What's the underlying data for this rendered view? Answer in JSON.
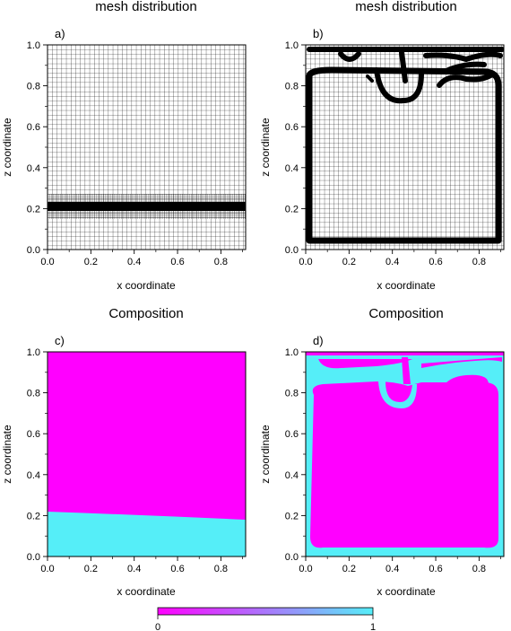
{
  "chart_data": [
    {
      "panel": "a)",
      "type": "mesh",
      "title": "mesh distribution",
      "xlabel": "x coordinate",
      "ylabel": "z coordinate",
      "xlim": [
        0,
        0.9142
      ],
      "ylim": [
        0,
        1
      ],
      "xticks": [
        "0.0",
        "0.2",
        "0.4",
        "0.6",
        "0.8"
      ],
      "yticks": [
        "0.0",
        "0.2",
        "0.4",
        "0.6",
        "0.8",
        "1.0"
      ],
      "refinement": {
        "shape": "band",
        "z_range": [
          0.15,
          0.25
        ]
      }
    },
    {
      "panel": "b)",
      "type": "mesh",
      "title": "mesh distribution",
      "xlabel": "x coordinate",
      "ylabel": "z coordinate",
      "xlim": [
        0,
        0.9142
      ],
      "ylim": [
        0,
        1
      ],
      "xticks": [
        "0.0",
        "0.2",
        "0.4",
        "0.6",
        "0.8"
      ],
      "yticks": [
        "0.0",
        "0.2",
        "0.4",
        "0.6",
        "0.8",
        "1.0"
      ],
      "refinement": {
        "shape": "interface",
        "follows": "composition boundary"
      }
    },
    {
      "panel": "c)",
      "type": "field",
      "title": "Composition",
      "xlabel": "x coordinate",
      "ylabel": "z coordinate",
      "xlim": [
        0,
        0.9142
      ],
      "ylim": [
        0,
        1
      ],
      "xticks": [
        "0.0",
        "0.2",
        "0.4",
        "0.6",
        "0.8"
      ],
      "yticks": [
        "0.0",
        "0.2",
        "0.4",
        "0.6",
        "0.8",
        "1.0"
      ],
      "interface": {
        "x": [
          0,
          0.9142
        ],
        "z": [
          0.22,
          0.18
        ]
      }
    },
    {
      "panel": "d)",
      "type": "field",
      "title": "Composition",
      "xlabel": "x coordinate",
      "ylabel": "z coordinate",
      "xlim": [
        0,
        0.9142
      ],
      "ylim": [
        0,
        1
      ],
      "xticks": [
        "0.0",
        "0.2",
        "0.4",
        "0.6",
        "0.8"
      ],
      "yticks": [
        "0.0",
        "0.2",
        "0.4",
        "0.6",
        "0.8",
        "1.0"
      ]
    }
  ],
  "colorbar": {
    "min_label": "0",
    "max_label": "1",
    "min_color": "#ff00ff",
    "max_color": "#55eef8"
  },
  "colors": {
    "composition_0": "#ff00ff",
    "composition_1": "#55eef8",
    "mesh": "#000000"
  }
}
